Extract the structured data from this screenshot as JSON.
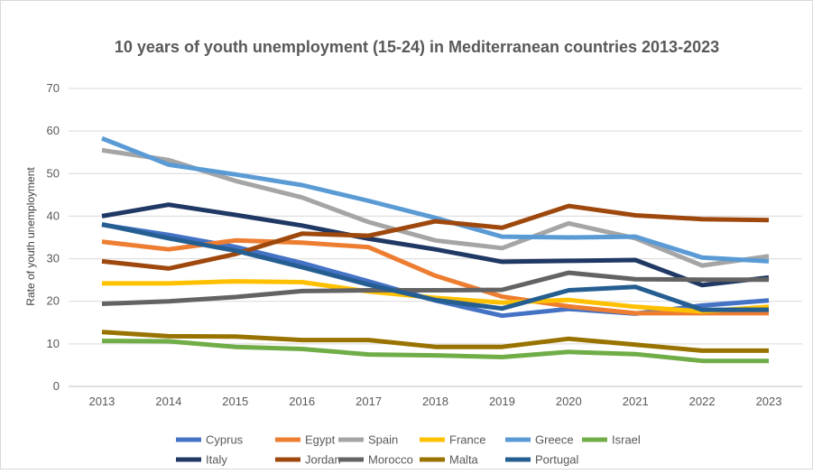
{
  "chart_data": {
    "type": "line",
    "title": "10 years of youth unemployment (15-24) in Mediterranean countries 2013-2023",
    "xlabel": "",
    "ylabel": "Rate of youth unemployment",
    "ylim": [
      0,
      70
    ],
    "yticks": [
      0,
      10,
      20,
      30,
      40,
      50,
      60,
      70
    ],
    "grid": true,
    "legend": "bottom",
    "categories": [
      "2013",
      "2014",
      "2015",
      "2016",
      "2017",
      "2018",
      "2019",
      "2020",
      "2021",
      "2022",
      "2023"
    ],
    "series": [
      {
        "name": "Cyprus",
        "color": "#4472C4",
        "values": [
          38.0,
          35.6,
          32.8,
          29.0,
          24.7,
          20.2,
          16.6,
          18.2,
          17.1,
          19.0,
          20.2
        ]
      },
      {
        "name": "Egypt",
        "color": "#ED7D31",
        "values": [
          34.0,
          32.2,
          34.3,
          33.8,
          32.7,
          26.0,
          21.1,
          18.8,
          17.2,
          17.2,
          17.2
        ]
      },
      {
        "name": "Spain",
        "color": "#A5A5A5",
        "values": [
          55.5,
          53.2,
          48.3,
          44.4,
          38.6,
          34.3,
          32.5,
          38.3,
          34.8,
          28.4,
          30.6
        ]
      },
      {
        "name": "France",
        "color": "#FFC000",
        "values": [
          24.2,
          24.2,
          24.7,
          24.5,
          22.3,
          20.8,
          19.7,
          20.3,
          18.7,
          17.6,
          18.7
        ]
      },
      {
        "name": "Greece",
        "color": "#5B9BD5",
        "values": [
          58.3,
          52.1,
          49.8,
          47.3,
          43.6,
          39.6,
          35.2,
          35.0,
          35.2,
          30.3,
          29.4
        ]
      },
      {
        "name": "Israel",
        "color": "#70AD47",
        "values": [
          10.7,
          10.6,
          9.3,
          8.8,
          7.5,
          7.3,
          6.9,
          8.1,
          7.6,
          6.0,
          6.0
        ]
      },
      {
        "name": "Italy",
        "color": "#1F3864",
        "values": [
          40.0,
          42.7,
          40.3,
          37.8,
          34.7,
          32.2,
          29.3,
          29.5,
          29.7,
          23.8,
          25.6
        ]
      },
      {
        "name": "Jordan",
        "color": "#9E480E",
        "values": [
          29.4,
          27.7,
          31.1,
          35.9,
          35.4,
          38.8,
          37.3,
          42.4,
          40.2,
          39.3,
          39.1
        ]
      },
      {
        "name": "Morocco",
        "color": "#636363",
        "values": [
          19.4,
          20.0,
          21.0,
          22.4,
          22.6,
          22.6,
          22.7,
          26.7,
          25.2,
          25.1,
          25.1
        ]
      },
      {
        "name": "Malta",
        "color": "#997300",
        "values": [
          12.8,
          11.8,
          11.7,
          10.9,
          10.9,
          9.3,
          9.3,
          11.2,
          9.8,
          8.4,
          8.4
        ]
      },
      {
        "name": "Portugal",
        "color": "#255E91",
        "values": [
          38.1,
          34.8,
          31.9,
          28.0,
          23.9,
          20.3,
          18.3,
          22.6,
          23.4,
          18.0,
          18.0
        ]
      }
    ]
  }
}
